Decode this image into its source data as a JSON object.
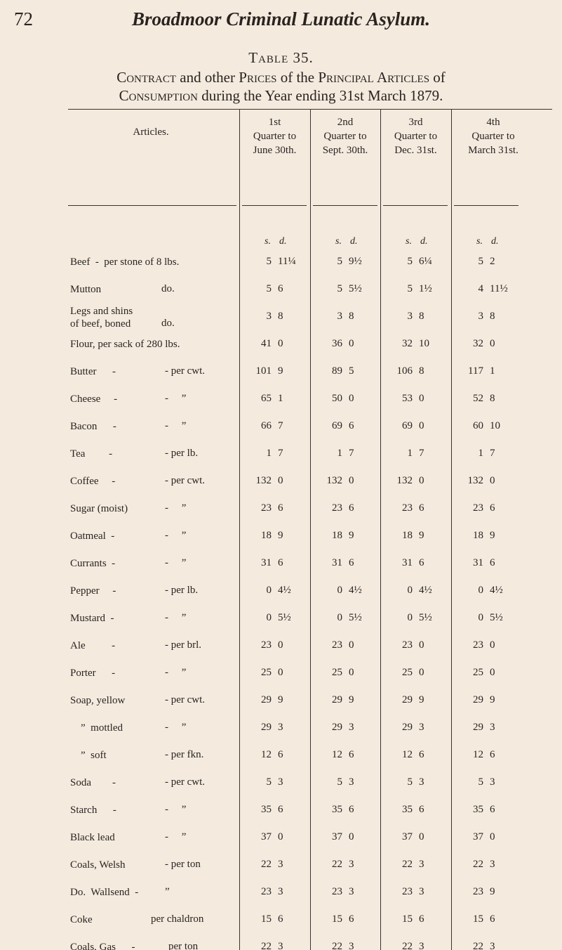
{
  "page_number": "72",
  "running_head": "Broadmoor Criminal Lunatic Asylum.",
  "table": {
    "label": "Table 35.",
    "caption_line1": [
      "Contract",
      " and other ",
      "Prices",
      " of the ",
      "Principal Articles",
      " of"
    ],
    "caption_line2": [
      "Consumption",
      " during the Year ending 31st March 1879."
    ],
    "columns": [
      "Articles.",
      "1st\nQuarter to\nJune 30th.",
      "2nd\nQuarter to\nSept. 30th.",
      "3rd\nQuarter to\nDec. 31st.",
      "4th\nQuarter to\nMarch 31st."
    ],
    "units_header": [
      "s.",
      "d."
    ],
    "rows": [
      {
        "article": "Beef  -  per stone of 8 lbs.",
        "unit": "",
        "q": [
          [
            "5",
            "11¼"
          ],
          [
            "5",
            "9½"
          ],
          [
            "5",
            "6¼"
          ],
          [
            "5",
            "2"
          ]
        ]
      },
      {
        "article": "Mutton",
        "unit": "do.",
        "q": [
          [
            "5",
            "6"
          ],
          [
            "5",
            "5½"
          ],
          [
            "5",
            "1½"
          ],
          [
            "4",
            "11½"
          ]
        ]
      },
      {
        "article": "Legs and shins\nof beef, boned",
        "unit": "do.",
        "q": [
          [
            "3",
            "8"
          ],
          [
            "3",
            "8"
          ],
          [
            "3",
            "8"
          ],
          [
            "3",
            "8"
          ]
        ]
      },
      {
        "article": "Flour, per sack of 280 lbs.",
        "unit": "",
        "q": [
          [
            "41",
            "0"
          ],
          [
            "36",
            "0"
          ],
          [
            "32",
            "10"
          ],
          [
            "32",
            "0"
          ]
        ]
      },
      {
        "article": "Butter      -",
        "unit": "- per cwt.",
        "q": [
          [
            "101",
            "9"
          ],
          [
            "89",
            "5"
          ],
          [
            "106",
            "8"
          ],
          [
            "117",
            "1"
          ]
        ]
      },
      {
        "article": "Cheese     -",
        "unit": "-     ”",
        "q": [
          [
            "65",
            "1"
          ],
          [
            "50",
            "0"
          ],
          [
            "53",
            "0"
          ],
          [
            "52",
            "8"
          ]
        ]
      },
      {
        "article": "Bacon      -",
        "unit": "-     ”",
        "q": [
          [
            "66",
            "7"
          ],
          [
            "69",
            "6"
          ],
          [
            "69",
            "0"
          ],
          [
            "60",
            "10"
          ]
        ]
      },
      {
        "article": "Tea         -",
        "unit": "- per lb.",
        "q": [
          [
            "1",
            "7"
          ],
          [
            "1",
            "7"
          ],
          [
            "1",
            "7"
          ],
          [
            "1",
            "7"
          ]
        ]
      },
      {
        "article": "Coffee     -",
        "unit": "- per cwt.",
        "q": [
          [
            "132",
            "0"
          ],
          [
            "132",
            "0"
          ],
          [
            "132",
            "0"
          ],
          [
            "132",
            "0"
          ]
        ]
      },
      {
        "article": "Sugar (moist)",
        "unit": "-     ”",
        "q": [
          [
            "23",
            "6"
          ],
          [
            "23",
            "6"
          ],
          [
            "23",
            "6"
          ],
          [
            "23",
            "6"
          ]
        ]
      },
      {
        "article": "Oatmeal  -",
        "unit": "-     ”",
        "q": [
          [
            "18",
            "9"
          ],
          [
            "18",
            "9"
          ],
          [
            "18",
            "9"
          ],
          [
            "18",
            "9"
          ]
        ]
      },
      {
        "article": "Currants  -",
        "unit": "-     ”",
        "q": [
          [
            "31",
            "6"
          ],
          [
            "31",
            "6"
          ],
          [
            "31",
            "6"
          ],
          [
            "31",
            "6"
          ]
        ]
      },
      {
        "article": "Pepper     -",
        "unit": "- per lb.",
        "q": [
          [
            "0",
            "4½"
          ],
          [
            "0",
            "4½"
          ],
          [
            "0",
            "4½"
          ],
          [
            "0",
            "4½"
          ]
        ]
      },
      {
        "article": "Mustard  -",
        "unit": "-     ”",
        "q": [
          [
            "0",
            "5½"
          ],
          [
            "0",
            "5½"
          ],
          [
            "0",
            "5½"
          ],
          [
            "0",
            "5½"
          ]
        ]
      },
      {
        "article": "Ale          -",
        "unit": "- per brl.",
        "q": [
          [
            "23",
            "0"
          ],
          [
            "23",
            "0"
          ],
          [
            "23",
            "0"
          ],
          [
            "23",
            "0"
          ]
        ]
      },
      {
        "article": "Porter      -",
        "unit": "-     ”",
        "q": [
          [
            "25",
            "0"
          ],
          [
            "25",
            "0"
          ],
          [
            "25",
            "0"
          ],
          [
            "25",
            "0"
          ]
        ]
      },
      {
        "article": "Soap, yellow",
        "unit": "- per cwt.",
        "q": [
          [
            "29",
            "9"
          ],
          [
            "29",
            "9"
          ],
          [
            "29",
            "9"
          ],
          [
            "29",
            "9"
          ]
        ]
      },
      {
        "article": "    ”  mottled",
        "unit": "-     ”",
        "q": [
          [
            "29",
            "3"
          ],
          [
            "29",
            "3"
          ],
          [
            "29",
            "3"
          ],
          [
            "29",
            "3"
          ]
        ]
      },
      {
        "article": "    ”  soft",
        "unit": "- per fkn.",
        "q": [
          [
            "12",
            "6"
          ],
          [
            "12",
            "6"
          ],
          [
            "12",
            "6"
          ],
          [
            "12",
            "6"
          ]
        ]
      },
      {
        "article": "Soda        -",
        "unit": "- per cwt.",
        "q": [
          [
            "5",
            "3"
          ],
          [
            "5",
            "3"
          ],
          [
            "5",
            "3"
          ],
          [
            "5",
            "3"
          ]
        ]
      },
      {
        "article": "Starch      -",
        "unit": "-     ”",
        "q": [
          [
            "35",
            "6"
          ],
          [
            "35",
            "6"
          ],
          [
            "35",
            "6"
          ],
          [
            "35",
            "6"
          ]
        ]
      },
      {
        "article": "Black lead",
        "unit": "-     ”",
        "q": [
          [
            "37",
            "0"
          ],
          [
            "37",
            "0"
          ],
          [
            "37",
            "0"
          ],
          [
            "37",
            "0"
          ]
        ]
      },
      {
        "article": "Coals, Welsh",
        "unit": "- per ton",
        "q": [
          [
            "22",
            "3"
          ],
          [
            "22",
            "3"
          ],
          [
            "22",
            "3"
          ],
          [
            "22",
            "3"
          ]
        ]
      },
      {
        "article": "Do.  Wallsend  -",
        "unit": "”",
        "q": [
          [
            "23",
            "3"
          ],
          [
            "23",
            "3"
          ],
          [
            "23",
            "3"
          ],
          [
            "23",
            "9"
          ]
        ]
      },
      {
        "article": "Coke",
        "unit": "per chaldron",
        "q": [
          [
            "15",
            "6"
          ],
          [
            "15",
            "6"
          ],
          [
            "15",
            "6"
          ],
          [
            "15",
            "6"
          ]
        ]
      },
      {
        "article": "Coals, Gas      -",
        "unit": "per ton",
        "q": [
          [
            "22",
            "3"
          ],
          [
            "22",
            "3"
          ],
          [
            "22",
            "3"
          ],
          [
            "22",
            "3"
          ]
        ]
      }
    ]
  }
}
